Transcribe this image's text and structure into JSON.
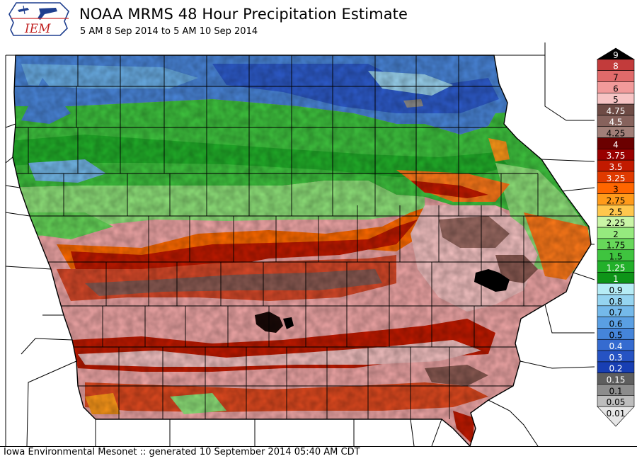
{
  "header": {
    "logo_text": "IEM",
    "title": "NOAA MRMS 48 Hour Precipitation Estimate",
    "subtitle": "5 AM 8 Sep 2014 to 5 AM 10 Sep 2014"
  },
  "footer": {
    "text": "Iowa Environmental Mesonet :: generated 10 September 2014 05:40 AM CDT"
  },
  "legend": {
    "bins": [
      {
        "label": "9",
        "color": "#000000"
      },
      {
        "label": "8",
        "color": "#c23b3b"
      },
      {
        "label": "7",
        "color": "#e06a6a"
      },
      {
        "label": "6",
        "color": "#f19a9a"
      },
      {
        "label": "5",
        "color": "#f6c3c3"
      },
      {
        "label": "4.75",
        "color": "#6e4b45"
      },
      {
        "label": "4.5",
        "color": "#86625c"
      },
      {
        "label": "4.25",
        "color": "#a17f78"
      },
      {
        "label": "4",
        "color": "#6b0000"
      },
      {
        "label": "3.75",
        "color": "#990000"
      },
      {
        "label": "3.5",
        "color": "#c21a00"
      },
      {
        "label": "3.25",
        "color": "#e03a00"
      },
      {
        "label": "3",
        "color": "#ff6600"
      },
      {
        "label": "2.75",
        "color": "#ff9a1a"
      },
      {
        "label": "2.5",
        "color": "#ffc74d"
      },
      {
        "label": "2.25",
        "color": "#c9f5a6"
      },
      {
        "label": "2",
        "color": "#96ea7e"
      },
      {
        "label": "1.75",
        "color": "#67d85a"
      },
      {
        "label": "1.5",
        "color": "#3fc43f"
      },
      {
        "label": "1.25",
        "color": "#22b02a"
      },
      {
        "label": "1",
        "color": "#0e9418"
      },
      {
        "label": "0.9",
        "color": "#b6ecf5"
      },
      {
        "label": "0.8",
        "color": "#95d4f0"
      },
      {
        "label": "0.7",
        "color": "#74b9ea"
      },
      {
        "label": "0.6",
        "color": "#5a9fe3"
      },
      {
        "label": "0.5",
        "color": "#4585da"
      },
      {
        "label": "0.4",
        "color": "#356bd0"
      },
      {
        "label": "0.3",
        "color": "#2653c3"
      },
      {
        "label": "0.2",
        "color": "#183fb3"
      },
      {
        "label": "0.15",
        "color": "#5e5e5e"
      },
      {
        "label": "0.1",
        "color": "#8c8c8c"
      },
      {
        "label": "0.05",
        "color": "#bdbdbd"
      },
      {
        "label": "0.01",
        "color": "#e6e6e6"
      }
    ]
  },
  "colors": {
    "county_lines": "#000000",
    "state_fill": "#ffffff"
  }
}
